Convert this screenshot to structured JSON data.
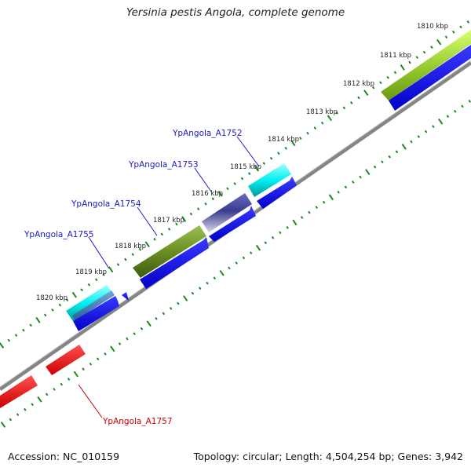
{
  "title": "Yersinia pestis Angola, complete genome",
  "footer": {
    "accession": "Accession: NC_010159",
    "summary": "Topology: circular; Length: 4,504,254 bp; Genes: 3,942"
  },
  "ticks": [
    {
      "label": "1810 kbp"
    },
    {
      "label": "1811 kbp"
    },
    {
      "label": "1812 kbp"
    },
    {
      "label": "1813 kbp"
    },
    {
      "label": "1814 kbp"
    },
    {
      "label": "1815 kbp"
    },
    {
      "label": "1816 kbp"
    },
    {
      "label": "1817 kbp"
    },
    {
      "label": "1818 kbp"
    },
    {
      "label": "1819 kbp"
    },
    {
      "label": "1820 kbp"
    }
  ],
  "gene_labels": {
    "a1752": "YpAngola_A1752",
    "a1753": "YpAngola_A1753",
    "a1754": "YpAngola_A1754",
    "a1755": "YpAngola_A1755",
    "a1757": "YpAngola_A1757"
  },
  "colors": {
    "cds_forward": "#0000ee",
    "gene_label_blue": "#1a1acc",
    "gene_label_red": "#cc0000",
    "tick_green": "#1a8a1a",
    "backbone": "#808080",
    "cyan_feature": "#00f0f0",
    "olive_feature": "#6b8e23",
    "lime_feature": "#9acd32",
    "navy_feature": "#3b3b8f",
    "red_feature": "#ee0000"
  }
}
